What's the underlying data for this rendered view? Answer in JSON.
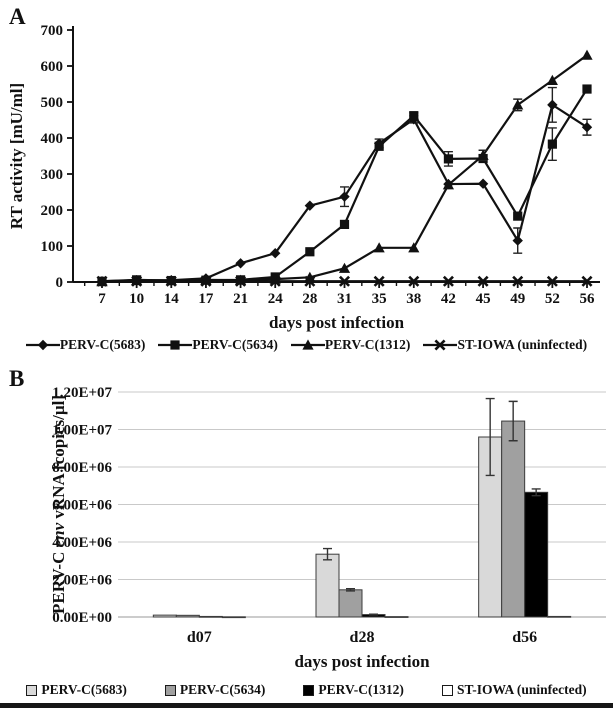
{
  "figure": {
    "panel_a_label": "A",
    "panel_b_label": "B"
  },
  "chart_data": [
    {
      "type": "line",
      "panel": "A",
      "xlabel": "days post infection",
      "ylabel": "RT activity [mU/ml]",
      "ylim": [
        0,
        700
      ],
      "ytick_step": 100,
      "grid": false,
      "legend_position": "bottom",
      "categories": [
        7,
        10,
        14,
        17,
        21,
        24,
        28,
        31,
        35,
        38,
        42,
        45,
        49,
        52,
        56
      ],
      "series": [
        {
          "name": "PERV-C(5683)",
          "marker": "diamond",
          "color": "#111111",
          "values": [
            2,
            5,
            5,
            10,
            52,
            80,
            212,
            237,
            385,
            452,
            272,
            273,
            115,
            492,
            430
          ],
          "errors": [
            0,
            0,
            0,
            0,
            0,
            0,
            0,
            27,
            12,
            10,
            0,
            0,
            35,
            48,
            22
          ]
        },
        {
          "name": "PERV-C(5634)",
          "marker": "square",
          "color": "#111111",
          "values": [
            2,
            6,
            4,
            5,
            6,
            14,
            84,
            160,
            377,
            462,
            342,
            343,
            183,
            383,
            536
          ],
          "errors": [
            0,
            0,
            0,
            0,
            0,
            0,
            0,
            0,
            0,
            8,
            20,
            0,
            0,
            45,
            0
          ]
        },
        {
          "name": "PERV-C(1312)",
          "marker": "triangle",
          "color": "#111111",
          "values": [
            1,
            4,
            4,
            6,
            5,
            8,
            13,
            38,
            95,
            95,
            270,
            352,
            492,
            560,
            630
          ],
          "errors": [
            0,
            0,
            0,
            0,
            0,
            0,
            0,
            0,
            0,
            0,
            0,
            14,
            16,
            0,
            0
          ]
        },
        {
          "name": "ST-IOWA (uninfected)",
          "marker": "x",
          "color": "#111111",
          "values": [
            2,
            2,
            2,
            2,
            2,
            2,
            2,
            2,
            2,
            2,
            2,
            2,
            2,
            2,
            2
          ],
          "errors": [
            0,
            0,
            0,
            0,
            0,
            0,
            0,
            0,
            0,
            0,
            0,
            0,
            0,
            0,
            0
          ]
        }
      ]
    },
    {
      "type": "bar",
      "panel": "B",
      "xlabel": "days post infection",
      "ylabel_parts": [
        {
          "text": "PERV-C ",
          "italic": false
        },
        {
          "text": "env",
          "italic": true
        },
        {
          "text": " vRNA [copies/µl]",
          "italic": false
        }
      ],
      "ylim": [
        0,
        12000000
      ],
      "ytick_step": 2000000,
      "ytick_labels": [
        "0.00E+00",
        "2.00E+06",
        "4.00E+06",
        "6.00E+06",
        "8.00E+06",
        "1.00E+07",
        "1.20E+07"
      ],
      "grid": true,
      "legend_position": "bottom",
      "categories": [
        "d07",
        "d28",
        "d56"
      ],
      "series": [
        {
          "name": "PERV-C(5683)",
          "color": "#d9d9d9",
          "values": [
            100000,
            3350000,
            9600000
          ],
          "errors": [
            0,
            300000,
            2050000
          ]
        },
        {
          "name": "PERV-C(5634)",
          "color": "#a0a0a0",
          "values": [
            90000,
            1450000,
            10450000
          ],
          "errors": [
            0,
            60000,
            1050000
          ]
        },
        {
          "name": "PERV-C(1312)",
          "color": "#000000",
          "values": [
            30000,
            130000,
            6650000
          ],
          "errors": [
            0,
            20000,
            180000
          ]
        },
        {
          "name": "ST-IOWA (uninfected)",
          "color": "#ffffff",
          "values": [
            10000,
            20000,
            30000
          ],
          "errors": [
            0,
            0,
            0
          ]
        }
      ]
    }
  ]
}
